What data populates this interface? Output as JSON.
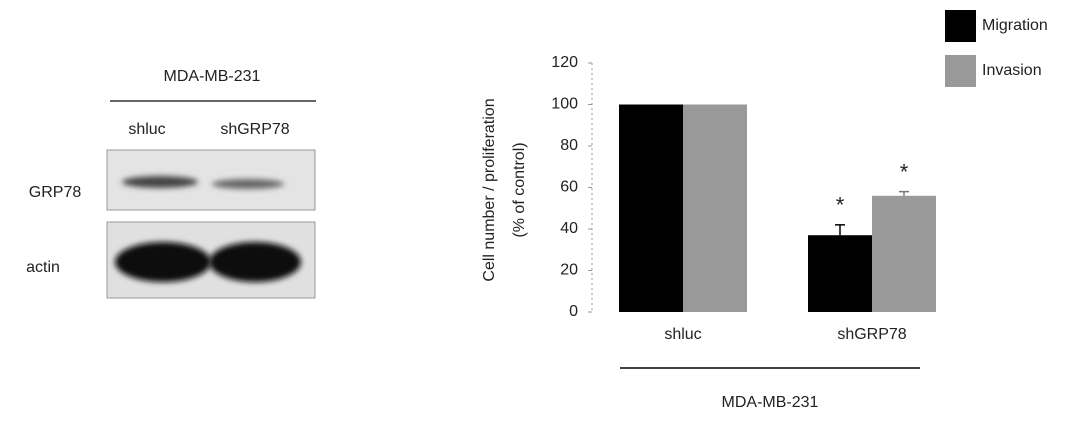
{
  "blot": {
    "cell_line": "MDA-MB-231",
    "lanes": [
      "shluc",
      "shGRP78"
    ],
    "rows": [
      "GRP78",
      "actin"
    ]
  },
  "chart_data": {
    "type": "bar",
    "ylabel": [
      "Cell number / proliferation",
      "(% of control)"
    ],
    "xlabel": "MDA-MB-231",
    "categories": [
      "shluc",
      "shGRP78"
    ],
    "series": [
      {
        "name": "Migration",
        "color": "#000000",
        "values": [
          100,
          37
        ],
        "errors": [
          0,
          5
        ]
      },
      {
        "name": "Invasion",
        "color": "#999999",
        "values": [
          100,
          56
        ],
        "errors": [
          0,
          2
        ]
      }
    ],
    "annotations": [
      {
        "text": "*",
        "series": 0,
        "category": 1
      },
      {
        "text": "*",
        "series": 1,
        "category": 1
      }
    ],
    "ylim": [
      0,
      120
    ],
    "yticks": [
      0,
      20,
      40,
      60,
      80,
      100,
      120
    ],
    "legend": "top-right"
  }
}
